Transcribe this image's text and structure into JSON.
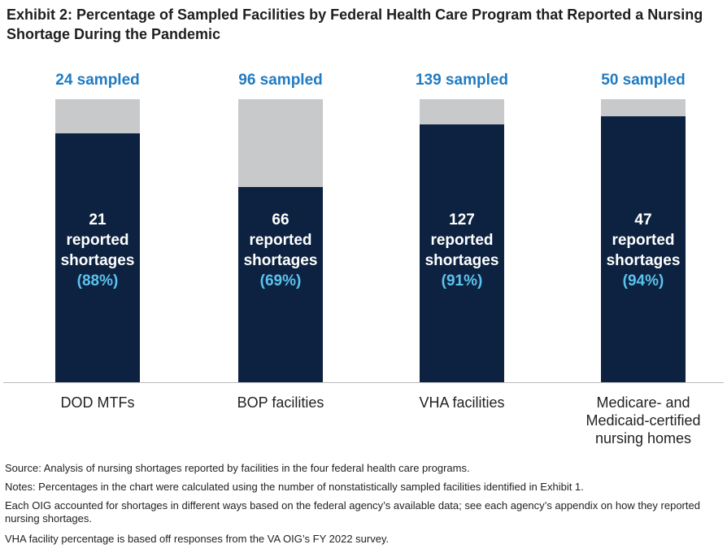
{
  "chart_data": {
    "type": "stacked-percent-bar",
    "title": "Exhibit 2: Percentage of Sampled Facilities by Federal Health Care Program that Reported a Nursing Shortage During the Pandemic",
    "categories": [
      "DOD MTFs",
      "BOP facilities",
      "VHA facilities",
      "Medicare- and Medicaid-certified nursing homes"
    ],
    "series": [
      {
        "name": "sampled",
        "color": "#c8c9cb",
        "values": [
          24,
          96,
          139,
          50
        ],
        "value_labels": [
          "24 sampled",
          "96 sampled",
          "139 sampled",
          "50 sampled"
        ]
      },
      {
        "name": "reported shortages",
        "color": "#0d2240",
        "values": [
          21,
          66,
          127,
          47
        ],
        "value_labels": [
          "21 reported shortages",
          "66 reported shortages",
          "127 reported shortages",
          "47 reported shortages"
        ]
      },
      {
        "name": "percent",
        "color": "#0d2240",
        "values": [
          88,
          69,
          91,
          94
        ],
        "value_labels": [
          "(88%)",
          "(69%)",
          "(91%)",
          "(94%)"
        ]
      }
    ],
    "notes": [
      "Source: Analysis of nursing shortages reported by facilities in the four federal health care programs.",
      "Notes: Percentages in the chart were calculated using the number of nonstatistically sampled facilities identified in Exhibit 1.",
      "Each OIG accounted for shortages in different ways based on the federal agency’s available data; see each agency’s appendix on how they reported nursing shortages.",
      "VHA facility percentage is based off responses from the VA OIG’s FY 2022 survey."
    ]
  }
}
